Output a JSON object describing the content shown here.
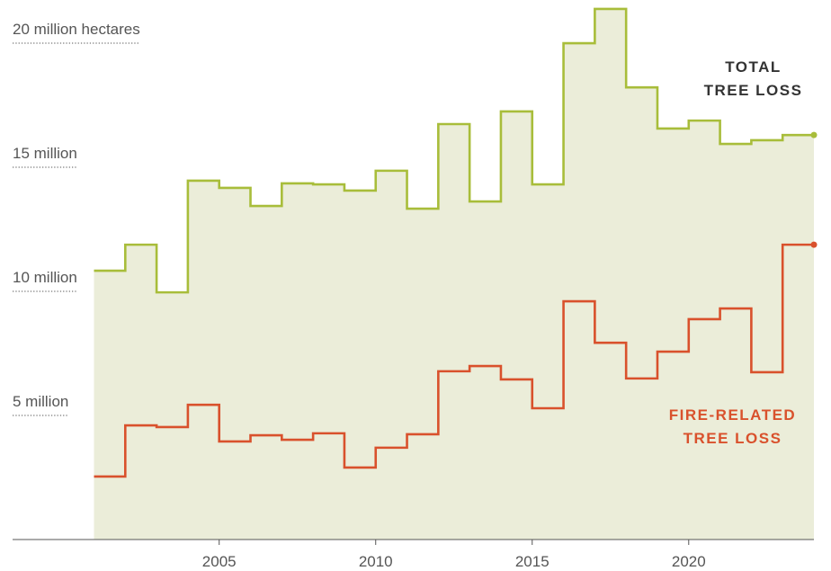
{
  "chart_data": {
    "type": "step",
    "x": [
      2001,
      2002,
      2003,
      2004,
      2005,
      2006,
      2007,
      2008,
      2009,
      2010,
      2011,
      2012,
      2013,
      2014,
      2015,
      2016,
      2017,
      2018,
      2019,
      2020,
      2021,
      2022,
      2023
    ],
    "series": [
      {
        "name": "TOTAL\nTREE LOSS",
        "color": "#a8bd3a",
        "values": [
          10.83,
          11.88,
          9.96,
          14.46,
          14.17,
          13.44,
          14.35,
          14.31,
          14.06,
          14.86,
          13.33,
          16.74,
          13.62,
          17.25,
          14.31,
          20.0,
          21.38,
          18.22,
          16.56,
          16.88,
          15.94,
          16.09,
          16.3
        ]
      },
      {
        "name": "FIRE-RELATED\nTREE LOSS",
        "color": "#d9512c",
        "values": [
          2.54,
          4.6,
          4.53,
          5.43,
          3.95,
          4.2,
          4.02,
          4.28,
          2.9,
          3.7,
          4.24,
          6.78,
          6.99,
          6.45,
          5.29,
          9.6,
          7.93,
          6.49,
          7.57,
          8.88,
          9.31,
          6.74,
          11.88
        ]
      }
    ],
    "area_color": "#ebedd9",
    "xlim": [
      1998.4,
      2024
    ],
    "xticks": [
      2005,
      2010,
      2015,
      2020
    ],
    "ylim": [
      0,
      21.74
    ],
    "yticks": [
      {
        "value": 5,
        "label": "5 million"
      },
      {
        "value": 10,
        "label": "10 million"
      },
      {
        "value": 15,
        "label": "15 million"
      },
      {
        "value": 20,
        "label": "20 million hectares"
      }
    ]
  }
}
